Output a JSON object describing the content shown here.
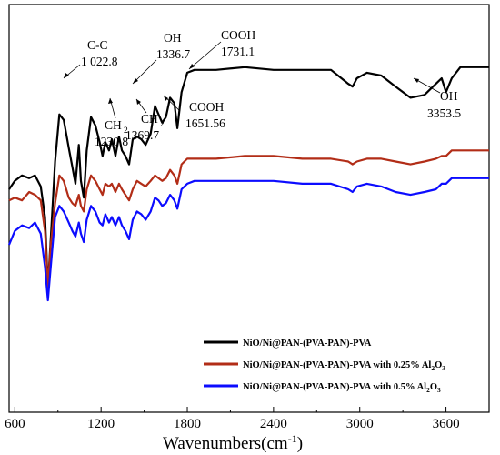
{
  "chart_data": {
    "type": "line",
    "xlabel": "Wavenumbers(cm",
    "xlabel_sup": "-1",
    "xlabel_close": ")",
    "xlim": [
      560,
      3900
    ],
    "x_ticks": [
      "600",
      "1200",
      "1800",
      "2400",
      "3000",
      "3600"
    ],
    "x_tick_values": [
      600,
      1200,
      1800,
      2400,
      3000,
      3600
    ],
    "ylabel": "",
    "grid": false,
    "legend_position": "bottom-right",
    "series": [
      {
        "name": "NiO/Ni@PAN-(PVA-PAN)-PVA",
        "name_sub": "",
        "color": "#000000",
        "points": [
          [
            560,
            0.6
          ],
          [
            600,
            0.57
          ],
          [
            650,
            0.55
          ],
          [
            700,
            0.56
          ],
          [
            740,
            0.55
          ],
          [
            780,
            0.59
          ],
          [
            810,
            0.7
          ],
          [
            830,
            0.95
          ],
          [
            850,
            0.78
          ],
          [
            880,
            0.5
          ],
          [
            910,
            0.33
          ],
          [
            940,
            0.35
          ],
          [
            975,
            0.45
          ],
          [
            1000,
            0.52
          ],
          [
            1022,
            0.58
          ],
          [
            1045,
            0.44
          ],
          [
            1060,
            0.57
          ],
          [
            1080,
            0.63
          ],
          [
            1100,
            0.46
          ],
          [
            1130,
            0.34
          ],
          [
            1160,
            0.37
          ],
          [
            1190,
            0.43
          ],
          [
            1210,
            0.48
          ],
          [
            1230,
            0.43
          ],
          [
            1255,
            0.46
          ],
          [
            1275,
            0.42
          ],
          [
            1300,
            0.48
          ],
          [
            1325,
            0.41
          ],
          [
            1345,
            0.46
          ],
          [
            1370,
            0.48
          ],
          [
            1395,
            0.51
          ],
          [
            1420,
            0.42
          ],
          [
            1450,
            0.41
          ],
          [
            1480,
            0.42
          ],
          [
            1510,
            0.44
          ],
          [
            1545,
            0.4
          ],
          [
            1575,
            0.3
          ],
          [
            1600,
            0.33
          ],
          [
            1625,
            0.36
          ],
          [
            1651,
            0.34
          ],
          [
            1680,
            0.27
          ],
          [
            1710,
            0.29
          ],
          [
            1731,
            0.38
          ],
          [
            1760,
            0.25
          ],
          [
            1800,
            0.18
          ],
          [
            1850,
            0.17
          ],
          [
            2000,
            0.17
          ],
          [
            2200,
            0.16
          ],
          [
            2400,
            0.17
          ],
          [
            2600,
            0.17
          ],
          [
            2800,
            0.17
          ],
          [
            2920,
            0.22
          ],
          [
            2950,
            0.23
          ],
          [
            2980,
            0.2
          ],
          [
            3050,
            0.18
          ],
          [
            3150,
            0.19
          ],
          [
            3250,
            0.23
          ],
          [
            3353,
            0.27
          ],
          [
            3450,
            0.26
          ],
          [
            3530,
            0.22
          ],
          [
            3570,
            0.2
          ],
          [
            3600,
            0.25
          ],
          [
            3640,
            0.2
          ],
          [
            3700,
            0.16
          ],
          [
            3800,
            0.16
          ],
          [
            3900,
            0.16
          ]
        ]
      },
      {
        "name": "NiO/Ni@PAN-(PVA-PAN)-PVA with 0.25% Al",
        "name_sub": "2",
        "name_tail": "O",
        "name_sub2": "3",
        "color": "#b22d17",
        "points": [
          [
            560,
            0.64
          ],
          [
            600,
            0.63
          ],
          [
            650,
            0.64
          ],
          [
            700,
            0.61
          ],
          [
            740,
            0.62
          ],
          [
            780,
            0.64
          ],
          [
            810,
            0.75
          ],
          [
            830,
            0.95
          ],
          [
            850,
            0.8
          ],
          [
            880,
            0.65
          ],
          [
            910,
            0.55
          ],
          [
            940,
            0.57
          ],
          [
            975,
            0.63
          ],
          [
            1000,
            0.65
          ],
          [
            1022,
            0.66
          ],
          [
            1045,
            0.62
          ],
          [
            1060,
            0.66
          ],
          [
            1080,
            0.68
          ],
          [
            1100,
            0.6
          ],
          [
            1130,
            0.55
          ],
          [
            1160,
            0.57
          ],
          [
            1190,
            0.6
          ],
          [
            1210,
            0.62
          ],
          [
            1230,
            0.58
          ],
          [
            1255,
            0.59
          ],
          [
            1275,
            0.58
          ],
          [
            1300,
            0.61
          ],
          [
            1325,
            0.58
          ],
          [
            1345,
            0.6
          ],
          [
            1370,
            0.62
          ],
          [
            1395,
            0.64
          ],
          [
            1420,
            0.6
          ],
          [
            1450,
            0.57
          ],
          [
            1480,
            0.58
          ],
          [
            1510,
            0.59
          ],
          [
            1545,
            0.57
          ],
          [
            1575,
            0.55
          ],
          [
            1600,
            0.56
          ],
          [
            1625,
            0.57
          ],
          [
            1651,
            0.56
          ],
          [
            1680,
            0.53
          ],
          [
            1710,
            0.55
          ],
          [
            1731,
            0.58
          ],
          [
            1760,
            0.51
          ],
          [
            1800,
            0.49
          ],
          [
            1850,
            0.49
          ],
          [
            2000,
            0.49
          ],
          [
            2200,
            0.48
          ],
          [
            2400,
            0.48
          ],
          [
            2600,
            0.49
          ],
          [
            2800,
            0.49
          ],
          [
            2920,
            0.5
          ],
          [
            2950,
            0.51
          ],
          [
            2980,
            0.5
          ],
          [
            3050,
            0.49
          ],
          [
            3150,
            0.49
          ],
          [
            3250,
            0.5
          ],
          [
            3353,
            0.51
          ],
          [
            3450,
            0.5
          ],
          [
            3530,
            0.49
          ],
          [
            3570,
            0.48
          ],
          [
            3600,
            0.48
          ],
          [
            3640,
            0.46
          ],
          [
            3700,
            0.46
          ],
          [
            3800,
            0.46
          ],
          [
            3900,
            0.46
          ]
        ]
      },
      {
        "name": "NiO/Ni@PAN-(PVA-PAN)-PVA with 0.5% Al",
        "name_sub": "2",
        "name_tail": "O",
        "name_sub2": "3",
        "color": "#0c0cff",
        "points": [
          [
            560,
            0.8
          ],
          [
            600,
            0.75
          ],
          [
            650,
            0.73
          ],
          [
            700,
            0.74
          ],
          [
            740,
            0.72
          ],
          [
            780,
            0.76
          ],
          [
            810,
            0.88
          ],
          [
            830,
            1.0
          ],
          [
            850,
            0.88
          ],
          [
            880,
            0.7
          ],
          [
            910,
            0.66
          ],
          [
            940,
            0.68
          ],
          [
            975,
            0.72
          ],
          [
            1000,
            0.75
          ],
          [
            1022,
            0.77
          ],
          [
            1045,
            0.72
          ],
          [
            1060,
            0.76
          ],
          [
            1080,
            0.79
          ],
          [
            1100,
            0.71
          ],
          [
            1130,
            0.66
          ],
          [
            1160,
            0.68
          ],
          [
            1190,
            0.72
          ],
          [
            1210,
            0.73
          ],
          [
            1230,
            0.69
          ],
          [
            1255,
            0.72
          ],
          [
            1275,
            0.7
          ],
          [
            1300,
            0.73
          ],
          [
            1325,
            0.7
          ],
          [
            1345,
            0.73
          ],
          [
            1370,
            0.75
          ],
          [
            1395,
            0.78
          ],
          [
            1420,
            0.71
          ],
          [
            1450,
            0.68
          ],
          [
            1480,
            0.69
          ],
          [
            1510,
            0.71
          ],
          [
            1545,
            0.68
          ],
          [
            1575,
            0.63
          ],
          [
            1600,
            0.64
          ],
          [
            1625,
            0.66
          ],
          [
            1651,
            0.65
          ],
          [
            1680,
            0.62
          ],
          [
            1710,
            0.64
          ],
          [
            1731,
            0.67
          ],
          [
            1760,
            0.6
          ],
          [
            1800,
            0.58
          ],
          [
            1850,
            0.57
          ],
          [
            2000,
            0.57
          ],
          [
            2200,
            0.57
          ],
          [
            2400,
            0.57
          ],
          [
            2600,
            0.58
          ],
          [
            2800,
            0.58
          ],
          [
            2920,
            0.6
          ],
          [
            2950,
            0.61
          ],
          [
            2980,
            0.59
          ],
          [
            3050,
            0.58
          ],
          [
            3150,
            0.59
          ],
          [
            3250,
            0.61
          ],
          [
            3353,
            0.62
          ],
          [
            3450,
            0.61
          ],
          [
            3530,
            0.6
          ],
          [
            3570,
            0.58
          ],
          [
            3600,
            0.58
          ],
          [
            3640,
            0.56
          ],
          [
            3700,
            0.56
          ],
          [
            3800,
            0.56
          ],
          [
            3900,
            0.56
          ]
        ]
      }
    ],
    "annotations": [
      {
        "label": "C-C",
        "label2": "1 022.8",
        "x": 1022.8
      },
      {
        "label": "CH",
        "sub": "2",
        "label2": "1230.8",
        "x": 1230.8
      },
      {
        "label": "OH",
        "label2": "1336.7",
        "x": 1336.7
      },
      {
        "label": "CH",
        "sub": "2",
        "label2": "1369.7",
        "x": 1369.7
      },
      {
        "label": "COOH",
        "label2": "1651.56",
        "x": 1651.56
      },
      {
        "label": "COOH",
        "label2": "1731.1",
        "x": 1731.1
      },
      {
        "label": "OH",
        "label2": "3353.5",
        "x": 3353.5
      }
    ]
  }
}
